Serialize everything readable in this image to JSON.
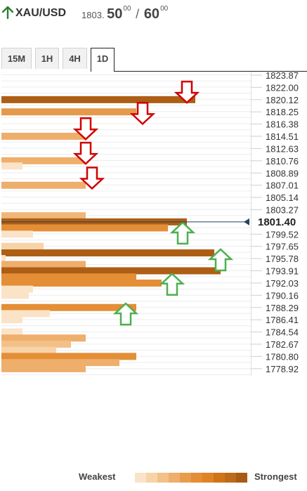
{
  "header": {
    "symbol": "XAU/USD",
    "price_prefix": "1803.",
    "bid_big": "50",
    "bid_sup": "00",
    "separator": "/",
    "ask_big": "60",
    "ask_sup": "00",
    "trend_icon": "up-arrow-icon",
    "trend_color": "#2e7d32"
  },
  "tabs": [
    {
      "label": "15M",
      "active": false
    },
    {
      "label": "1H",
      "active": false
    },
    {
      "label": "4H",
      "active": false
    },
    {
      "label": "1D",
      "active": true
    }
  ],
  "legend": {
    "weakest_label": "Weakest",
    "strongest_label": "Strongest",
    "scale_colors": [
      "#fbe3c8",
      "#f7d3a8",
      "#f3c087",
      "#eeae6c",
      "#e99d4c",
      "#e48e36",
      "#de8326",
      "#cf741b",
      "#bd6a1a",
      "#a85b14"
    ]
  },
  "chart_data": {
    "type": "bar",
    "orientation": "horizontal",
    "description_type": "confluence-detector",
    "price_axis": [
      "1823.87",
      "1822.00",
      "1820.12",
      "1818.25",
      "1816.38",
      "1814.51",
      "1812.63",
      "1810.76",
      "1808.89",
      "1807.01",
      "1805.14",
      "1803.27",
      "1799.52",
      "1797.65",
      "1795.78",
      "1793.91",
      "1792.03",
      "1790.16",
      "1788.29",
      "1786.41",
      "1784.54",
      "1782.67",
      "1780.80",
      "1778.92"
    ],
    "ylim": [
      1777.9,
      1824.4
    ],
    "current_price": "1801.40",
    "current_price_value": 1801.4,
    "strength_scale": [
      0,
      100
    ],
    "bars": [
      {
        "price": 1820.12,
        "strength": 92,
        "color": "#ad5e15"
      },
      {
        "price": 1818.25,
        "strength": 64,
        "color": "#e49a4a"
      },
      {
        "price": 1814.51,
        "strength": 40,
        "color": "#eeae6c"
      },
      {
        "price": 1810.76,
        "strength": 40,
        "color": "#eeae6c"
      },
      {
        "price": 1809.96,
        "strength": 10,
        "color": "#fbe3c8"
      },
      {
        "price": 1807.01,
        "strength": 40,
        "color": "#eeae6c"
      },
      {
        "price": 1802.34,
        "strength": 40,
        "color": "#f0b677"
      },
      {
        "price": 1801.4,
        "strength": 88,
        "color": "#ad5e15"
      },
      {
        "price": 1800.48,
        "strength": 79,
        "color": "#e48e36"
      },
      {
        "price": 1799.52,
        "strength": 15,
        "color": "#fbe3c8"
      },
      {
        "price": 1797.65,
        "strength": 20,
        "color": "#f7d3a8"
      },
      {
        "price": 1796.65,
        "strength": 101,
        "color": "#ad5e15"
      },
      {
        "price": 1795.78,
        "strength": 2,
        "color": "#fbe3c8"
      },
      {
        "price": 1794.88,
        "strength": 40,
        "color": "#eeae6c"
      },
      {
        "price": 1793.91,
        "strength": 104,
        "color": "#ad5e15"
      },
      {
        "price": 1792.97,
        "strength": 64,
        "color": "#e48e36"
      },
      {
        "price": 1792.03,
        "strength": 76,
        "color": "#e48e36"
      },
      {
        "price": 1791.1,
        "strength": 15,
        "color": "#fbe3c8"
      },
      {
        "price": 1790.16,
        "strength": 13,
        "color": "#fbe3c8"
      },
      {
        "price": 1788.29,
        "strength": 64,
        "color": "#e48e36"
      },
      {
        "price": 1787.35,
        "strength": 23,
        "color": "#fbe3c8"
      },
      {
        "price": 1786.41,
        "strength": 10,
        "color": "#fbe3c8"
      },
      {
        "price": 1784.54,
        "strength": 10,
        "color": "#fbe3c8"
      },
      {
        "price": 1783.61,
        "strength": 40,
        "color": "#eeae6c"
      },
      {
        "price": 1782.67,
        "strength": 33,
        "color": "#f3c087"
      },
      {
        "price": 1781.73,
        "strength": 26,
        "color": "#f7d3a8"
      },
      {
        "price": 1780.8,
        "strength": 64,
        "color": "#e48e36"
      },
      {
        "price": 1779.86,
        "strength": 56,
        "color": "#eeae6c"
      },
      {
        "price": 1778.92,
        "strength": 40,
        "color": "#eeae6c"
      }
    ],
    "resistance_markers": [
      {
        "price": 1821.06,
        "anchor_strength": 88,
        "color": "#d00000"
      },
      {
        "price": 1817.8,
        "anchor_strength": 67,
        "color": "#d00000"
      },
      {
        "price": 1815.45,
        "anchor_strength": 40,
        "color": "#d00000"
      },
      {
        "price": 1811.7,
        "anchor_strength": 40,
        "color": "#d00000"
      },
      {
        "price": 1807.9,
        "anchor_strength": 43,
        "color": "#d00000"
      }
    ],
    "support_markers": [
      {
        "price": 1799.9,
        "anchor_strength": 86,
        "color": "#4caf50"
      },
      {
        "price": 1795.8,
        "anchor_strength": 104,
        "color": "#4caf50"
      },
      {
        "price": 1792.05,
        "anchor_strength": 81,
        "color": "#4caf50"
      },
      {
        "price": 1787.5,
        "anchor_strength": 59,
        "color": "#4caf50"
      }
    ]
  }
}
